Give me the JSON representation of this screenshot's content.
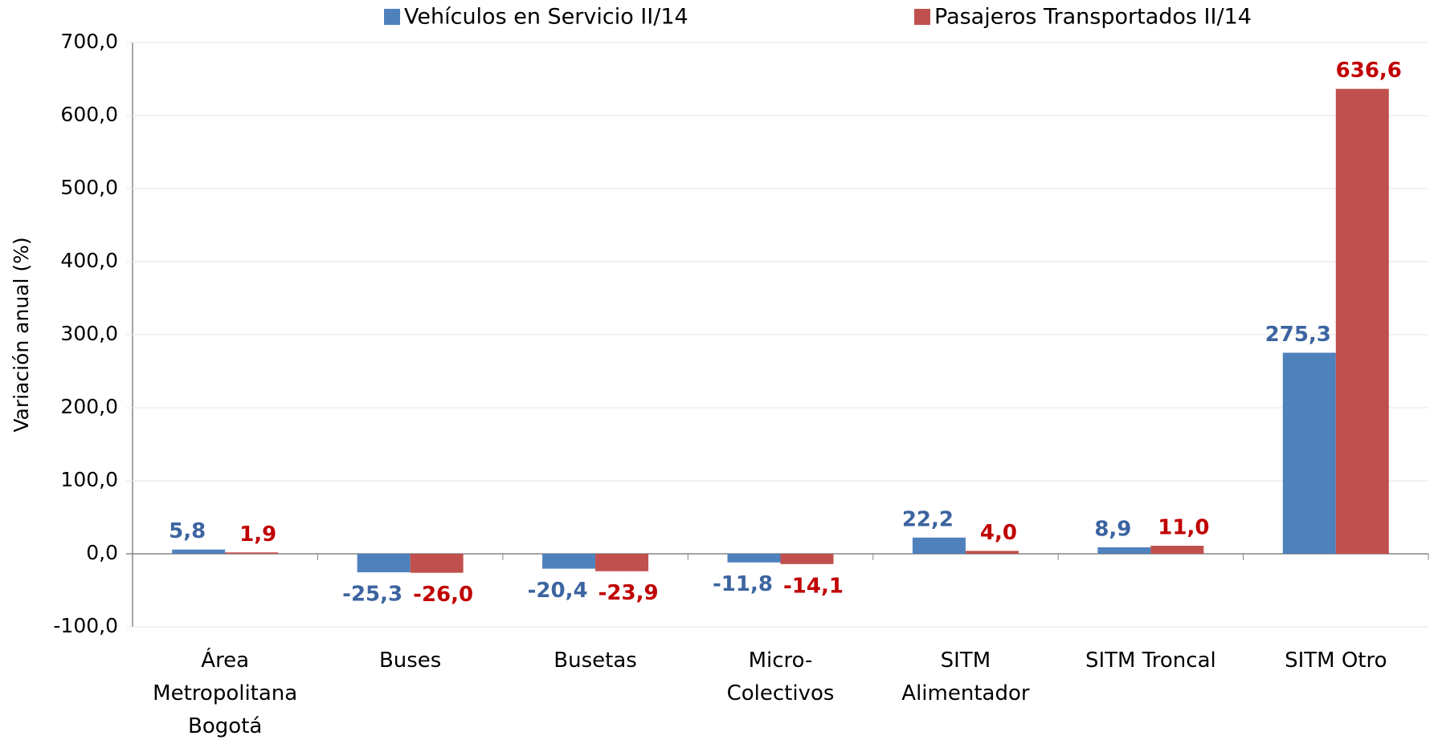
{
  "chart_data": {
    "type": "bar",
    "y_label": "Variación anual (%)",
    "categories": [
      "Área\nMetropolitana\nBogotá",
      "Buses",
      "Busetas",
      "Micro-\nColectivos",
      "SITM\nAlimentador",
      "SITM  Troncal",
      "SITM  Otro"
    ],
    "series": [
      {
        "name": "Vehículos en Servicio II/14",
        "color": "#4f81bd",
        "label_color": "#3c64a0",
        "values": [
          5.8,
          -25.3,
          -20.4,
          -11.8,
          22.2,
          8.9,
          275.3
        ],
        "value_labels": [
          "5,8",
          "-25,3",
          "-20,4",
          "-11,8",
          "22,2",
          "8,9",
          "275,3"
        ]
      },
      {
        "name": "Pasajeros Transportados II/14",
        "color": "#c0504d",
        "label_color": "#c00000",
        "values": [
          1.9,
          -26.0,
          -23.9,
          -14.1,
          4.0,
          11.0,
          636.6
        ],
        "value_labels": [
          "1,9",
          "-26,0",
          "-23,9",
          "-14,1",
          "4,0",
          "11,0",
          "636,6"
        ]
      }
    ],
    "ylim": [
      -100,
      700
    ],
    "yticks": [
      {
        "value": -100,
        "label": "-100,0"
      },
      {
        "value": 0,
        "label": "0,0"
      },
      {
        "value": 100,
        "label": "100,0"
      },
      {
        "value": 200,
        "label": "200,0"
      },
      {
        "value": 300,
        "label": "300,0"
      },
      {
        "value": 400,
        "label": "400,0"
      },
      {
        "value": 500,
        "label": "500,0"
      },
      {
        "value": 600,
        "label": "600,0"
      },
      {
        "value": 700,
        "label": "700,0"
      }
    ],
    "grid": true
  }
}
